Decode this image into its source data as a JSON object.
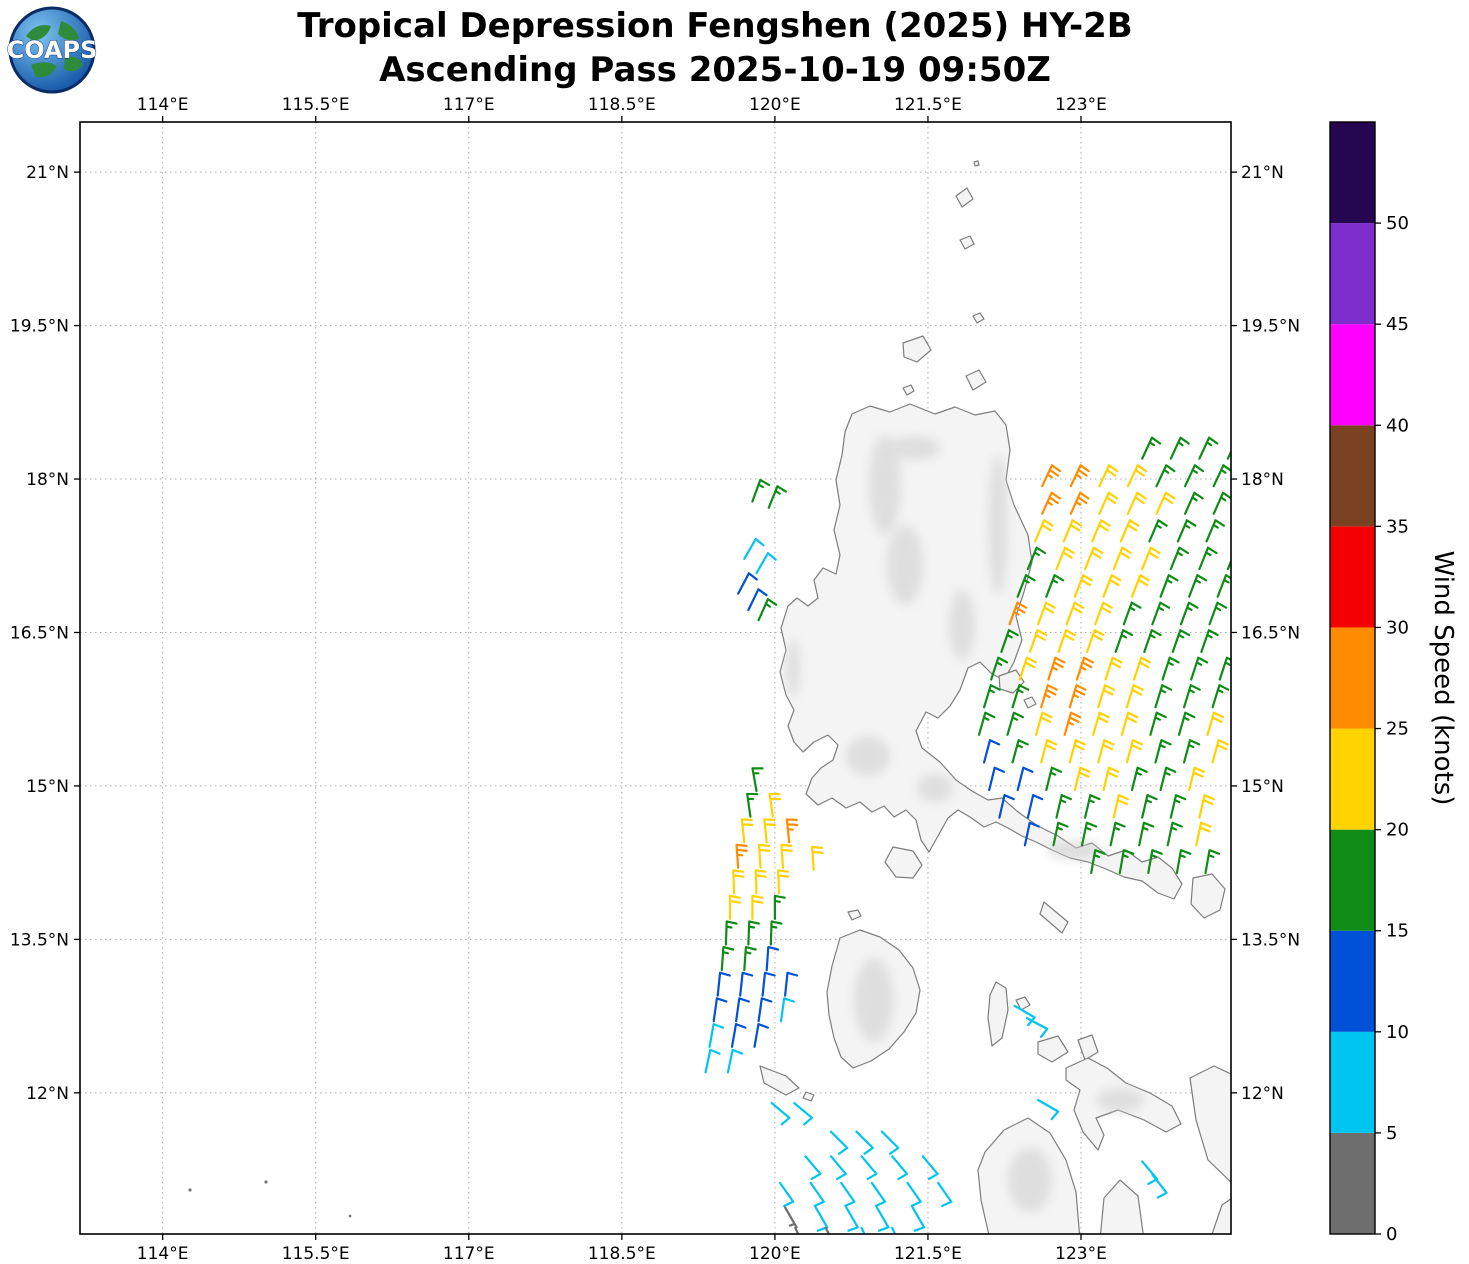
{
  "header": {
    "title_line1": "Tropical Depression Fengshen (2025) HY-2B",
    "title_line2": "Ascending Pass 2025-10-19 09:50Z",
    "logo_text": "COAPS"
  },
  "chart_data": {
    "type": "scatter",
    "subtype": "satellite-wind-barb-map",
    "title": "Tropical Depression Fengshen (2025) HY-2B",
    "subtitle": "Ascending Pass 2025-10-19 09:50Z",
    "grid": true,
    "xlim": [
      113.19,
      124.47
    ],
    "ylim": [
      10.62,
      21.49
    ],
    "x_ticks": [
      114,
      115.5,
      117,
      118.5,
      120,
      121.5,
      123
    ],
    "x_tick_labels": [
      "114°E",
      "115.5°E",
      "117°E",
      "118.5°E",
      "120°E",
      "121.5°E",
      "123°E"
    ],
    "y_ticks": [
      21,
      19.5,
      18,
      16.5,
      15,
      13.5,
      12
    ],
    "y_tick_labels": [
      "21°N",
      "19.5°N",
      "18°N",
      "16.5°N",
      "15°N",
      "13.5°N",
      "12°N"
    ],
    "colorbar": {
      "label": "Wind Speed (knots)",
      "units": "knots",
      "ticks": [
        0,
        5,
        10,
        15,
        20,
        25,
        30,
        35,
        40,
        45,
        50
      ],
      "max": 55,
      "bins": [
        {
          "min": 0,
          "max": 5,
          "color": "#6e6e6e"
        },
        {
          "min": 5,
          "max": 10,
          "color": "#00C5F0"
        },
        {
          "min": 10,
          "max": 15,
          "color": "#0050D8"
        },
        {
          "min": 15,
          "max": 20,
          "color": "#0E8C16"
        },
        {
          "min": 20,
          "max": 25,
          "color": "#FFD200"
        },
        {
          "min": 25,
          "max": 30,
          "color": "#FF8C00"
        },
        {
          "min": 30,
          "max": 35,
          "color": "#F50000"
        },
        {
          "min": 35,
          "max": 40,
          "color": "#7B4222"
        },
        {
          "min": 40,
          "max": 45,
          "color": "#FF00FF"
        },
        {
          "min": 45,
          "max": 50,
          "color": "#7E2ECC"
        },
        {
          "min": 50,
          "max": 55,
          "color": "#250751"
        }
      ]
    },
    "barb_format": [
      "lon_deg_east",
      "lat_deg_north",
      "speed_knots",
      "wind_from_dir_deg"
    ],
    "barbs": [
      [
        123.6,
        18.2,
        17,
        25
      ],
      [
        123.88,
        18.2,
        17,
        25
      ],
      [
        124.16,
        18.2,
        17,
        25
      ],
      [
        124.44,
        18.2,
        17,
        25
      ],
      [
        122.62,
        17.93,
        27,
        25
      ],
      [
        122.9,
        17.93,
        27,
        25
      ],
      [
        123.18,
        17.93,
        22,
        25
      ],
      [
        123.46,
        17.93,
        22,
        25
      ],
      [
        123.74,
        17.93,
        17,
        25
      ],
      [
        124.02,
        17.93,
        17,
        25
      ],
      [
        124.3,
        17.93,
        17,
        25
      ],
      [
        122.62,
        17.66,
        27,
        24
      ],
      [
        122.9,
        17.66,
        27,
        24
      ],
      [
        123.18,
        17.66,
        22,
        24
      ],
      [
        123.46,
        17.66,
        22,
        24
      ],
      [
        123.74,
        17.66,
        22,
        24
      ],
      [
        124.02,
        17.66,
        17,
        24
      ],
      [
        124.3,
        17.66,
        17,
        24
      ],
      [
        122.55,
        17.39,
        22,
        23
      ],
      [
        122.83,
        17.39,
        22,
        23
      ],
      [
        123.11,
        17.39,
        22,
        23
      ],
      [
        123.39,
        17.39,
        22,
        23
      ],
      [
        123.67,
        17.39,
        17,
        23
      ],
      [
        123.95,
        17.39,
        17,
        23
      ],
      [
        124.23,
        17.39,
        17,
        23
      ],
      [
        122.48,
        17.12,
        17,
        22
      ],
      [
        122.76,
        17.12,
        22,
        22
      ],
      [
        123.04,
        17.12,
        22,
        22
      ],
      [
        123.32,
        17.12,
        22,
        22
      ],
      [
        123.6,
        17.12,
        22,
        22
      ],
      [
        123.88,
        17.12,
        17,
        22
      ],
      [
        124.16,
        17.12,
        17,
        22
      ],
      [
        124.44,
        17.12,
        17,
        22
      ],
      [
        122.38,
        16.85,
        17,
        21
      ],
      [
        122.66,
        16.85,
        17,
        21
      ],
      [
        122.94,
        16.85,
        22,
        21
      ],
      [
        123.22,
        16.85,
        22,
        21
      ],
      [
        123.5,
        16.85,
        22,
        21
      ],
      [
        123.78,
        16.85,
        17,
        21
      ],
      [
        124.06,
        16.85,
        17,
        21
      ],
      [
        124.34,
        16.85,
        17,
        21
      ],
      [
        122.3,
        16.58,
        27,
        20
      ],
      [
        122.58,
        16.58,
        22,
        20
      ],
      [
        122.86,
        16.58,
        22,
        20
      ],
      [
        123.14,
        16.58,
        22,
        20
      ],
      [
        123.42,
        16.58,
        17,
        20
      ],
      [
        123.7,
        16.58,
        17,
        20
      ],
      [
        123.98,
        16.58,
        17,
        20
      ],
      [
        124.26,
        16.58,
        17,
        20
      ],
      [
        122.22,
        16.31,
        17,
        19
      ],
      [
        122.5,
        16.31,
        22,
        19
      ],
      [
        122.78,
        16.31,
        22,
        19
      ],
      [
        123.06,
        16.31,
        22,
        19
      ],
      [
        123.34,
        16.31,
        17,
        19
      ],
      [
        123.62,
        16.31,
        17,
        19
      ],
      [
        123.9,
        16.31,
        17,
        19
      ],
      [
        124.18,
        16.31,
        17,
        19
      ],
      [
        122.12,
        16.04,
        17,
        18
      ],
      [
        122.4,
        16.04,
        22,
        18
      ],
      [
        122.68,
        16.04,
        27,
        18
      ],
      [
        122.96,
        16.04,
        27,
        18
      ],
      [
        123.24,
        16.04,
        22,
        18
      ],
      [
        123.52,
        16.04,
        22,
        18
      ],
      [
        123.8,
        16.04,
        17,
        18
      ],
      [
        124.08,
        16.04,
        17,
        18
      ],
      [
        124.36,
        16.04,
        17,
        18
      ],
      [
        122.05,
        15.77,
        17,
        17
      ],
      [
        122.33,
        15.77,
        17,
        17
      ],
      [
        122.61,
        15.77,
        27,
        17
      ],
      [
        122.89,
        15.77,
        27,
        17
      ],
      [
        123.17,
        15.77,
        22,
        17
      ],
      [
        123.45,
        15.77,
        22,
        17
      ],
      [
        123.73,
        15.77,
        17,
        17
      ],
      [
        124.01,
        15.77,
        17,
        17
      ],
      [
        124.29,
        15.77,
        17,
        17
      ],
      [
        122.0,
        15.5,
        17,
        16
      ],
      [
        122.28,
        15.5,
        17,
        16
      ],
      [
        122.56,
        15.5,
        22,
        16
      ],
      [
        122.84,
        15.5,
        27,
        16
      ],
      [
        123.12,
        15.5,
        22,
        16
      ],
      [
        123.4,
        15.5,
        22,
        16
      ],
      [
        123.68,
        15.5,
        17,
        16
      ],
      [
        123.96,
        15.5,
        17,
        16
      ],
      [
        124.24,
        15.5,
        22,
        16
      ],
      [
        122.05,
        15.23,
        12,
        15
      ],
      [
        122.33,
        15.23,
        17,
        15
      ],
      [
        122.61,
        15.23,
        22,
        15
      ],
      [
        122.89,
        15.23,
        22,
        15
      ],
      [
        123.17,
        15.23,
        22,
        15
      ],
      [
        123.45,
        15.23,
        22,
        15
      ],
      [
        123.73,
        15.23,
        17,
        15
      ],
      [
        124.01,
        15.23,
        17,
        15
      ],
      [
        124.29,
        15.23,
        22,
        15
      ],
      [
        122.1,
        14.96,
        12,
        14
      ],
      [
        122.38,
        14.96,
        12,
        14
      ],
      [
        122.66,
        14.96,
        17,
        14
      ],
      [
        122.94,
        14.96,
        22,
        14
      ],
      [
        123.22,
        14.96,
        22,
        14
      ],
      [
        123.5,
        14.96,
        17,
        14
      ],
      [
        123.78,
        14.96,
        17,
        14
      ],
      [
        124.06,
        14.96,
        22,
        14
      ],
      [
        122.2,
        14.69,
        12,
        13
      ],
      [
        122.48,
        14.69,
        12,
        13
      ],
      [
        122.76,
        14.69,
        17,
        13
      ],
      [
        123.04,
        14.69,
        17,
        13
      ],
      [
        123.32,
        14.69,
        22,
        13
      ],
      [
        123.6,
        14.69,
        17,
        13
      ],
      [
        123.88,
        14.69,
        17,
        13
      ],
      [
        124.16,
        14.69,
        22,
        13
      ],
      [
        122.45,
        14.42,
        12,
        12
      ],
      [
        122.73,
        14.42,
        17,
        12
      ],
      [
        123.01,
        14.42,
        17,
        12
      ],
      [
        123.29,
        14.42,
        17,
        12
      ],
      [
        123.57,
        14.42,
        17,
        12
      ],
      [
        123.85,
        14.42,
        17,
        12
      ],
      [
        124.13,
        14.42,
        22,
        12
      ],
      [
        123.1,
        14.15,
        17,
        10
      ],
      [
        123.38,
        14.15,
        17,
        10
      ],
      [
        123.66,
        14.15,
        17,
        10
      ],
      [
        123.94,
        14.15,
        17,
        10
      ],
      [
        124.22,
        14.15,
        17,
        10
      ],
      [
        119.82,
        14.95,
        17,
        350
      ],
      [
        119.76,
        14.7,
        17,
        352
      ],
      [
        119.98,
        14.7,
        22,
        352
      ],
      [
        119.7,
        14.45,
        22,
        354
      ],
      [
        119.92,
        14.45,
        22,
        354
      ],
      [
        120.14,
        14.45,
        27,
        354
      ],
      [
        119.64,
        14.2,
        27,
        356
      ],
      [
        119.86,
        14.2,
        22,
        356
      ],
      [
        120.08,
        14.2,
        22,
        356
      ],
      [
        120.38,
        14.18,
        22,
        356
      ],
      [
        119.6,
        13.95,
        22,
        358
      ],
      [
        119.82,
        13.95,
        22,
        358
      ],
      [
        120.04,
        13.95,
        22,
        358
      ],
      [
        119.56,
        13.7,
        22,
        0
      ],
      [
        119.78,
        13.7,
        22,
        0
      ],
      [
        120.0,
        13.7,
        17,
        0
      ],
      [
        119.52,
        13.45,
        17,
        2
      ],
      [
        119.74,
        13.45,
        17,
        2
      ],
      [
        119.96,
        13.45,
        17,
        2
      ],
      [
        119.48,
        13.2,
        17,
        4
      ],
      [
        119.7,
        13.2,
        17,
        4
      ],
      [
        119.92,
        13.2,
        12,
        4
      ],
      [
        119.44,
        12.95,
        12,
        6
      ],
      [
        119.66,
        12.95,
        12,
        6
      ],
      [
        119.88,
        12.95,
        12,
        6
      ],
      [
        120.1,
        12.95,
        12,
        6
      ],
      [
        119.4,
        12.7,
        12,
        8
      ],
      [
        119.62,
        12.7,
        12,
        8
      ],
      [
        119.84,
        12.7,
        12,
        8
      ],
      [
        120.06,
        12.7,
        8,
        8
      ],
      [
        119.36,
        12.45,
        8,
        10
      ],
      [
        119.58,
        12.45,
        12,
        10
      ],
      [
        119.8,
        12.45,
        12,
        10
      ],
      [
        119.32,
        12.2,
        8,
        12
      ],
      [
        119.54,
        12.2,
        8,
        12
      ],
      [
        119.97,
        11.9,
        8,
        130
      ],
      [
        120.19,
        11.9,
        8,
        130
      ],
      [
        122.58,
        11.93,
        8,
        120
      ],
      [
        120.55,
        11.62,
        8,
        135
      ],
      [
        120.8,
        11.62,
        8,
        135
      ],
      [
        121.05,
        11.62,
        8,
        135
      ],
      [
        120.3,
        11.38,
        8,
        140
      ],
      [
        120.55,
        11.38,
        8,
        140
      ],
      [
        120.85,
        11.38,
        8,
        140
      ],
      [
        121.15,
        11.38,
        8,
        140
      ],
      [
        121.45,
        11.38,
        8,
        140
      ],
      [
        120.05,
        11.12,
        8,
        145
      ],
      [
        120.35,
        11.12,
        8,
        145
      ],
      [
        120.65,
        11.12,
        8,
        145
      ],
      [
        120.95,
        11.12,
        8,
        145
      ],
      [
        121.3,
        11.12,
        8,
        145
      ],
      [
        121.6,
        11.12,
        8,
        145
      ],
      [
        120.1,
        10.88,
        3,
        150
      ],
      [
        120.4,
        10.88,
        8,
        150
      ],
      [
        120.7,
        10.88,
        8,
        150
      ],
      [
        121.0,
        10.88,
        8,
        150
      ],
      [
        121.35,
        10.88,
        8,
        150
      ],
      [
        120.2,
        10.68,
        3,
        155
      ],
      [
        120.5,
        10.68,
        3,
        155
      ],
      [
        120.85,
        10.68,
        8,
        155
      ],
      [
        121.15,
        10.68,
        8,
        155
      ],
      [
        119.78,
        17.78,
        17,
        20
      ],
      [
        119.94,
        17.72,
        17,
        22
      ],
      [
        119.7,
        17.22,
        8,
        30
      ],
      [
        119.82,
        17.08,
        8,
        30
      ],
      [
        119.64,
        16.88,
        12,
        28
      ],
      [
        119.74,
        16.72,
        12,
        26
      ],
      [
        119.84,
        16.62,
        17,
        24
      ],
      [
        122.35,
        12.85,
        8,
        120
      ],
      [
        122.47,
        12.73,
        8,
        118
      ],
      [
        123.6,
        11.33,
        8,
        140
      ],
      [
        123.7,
        11.2,
        8,
        142
      ]
    ]
  }
}
